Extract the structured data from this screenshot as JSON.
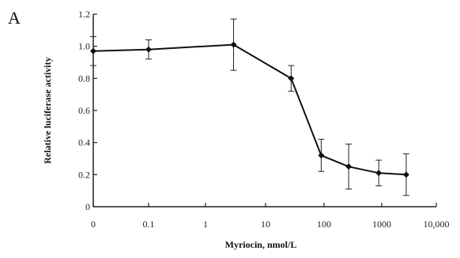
{
  "panel_label": "A",
  "chart_data": {
    "type": "line",
    "title": "",
    "xlabel": "Myriocin, nmol/L",
    "ylabel": "Relative luciferase activity",
    "x_scale": "log",
    "x_tick_labels": [
      "0",
      "0.1",
      "1",
      "10",
      "100",
      "1000",
      "10,000"
    ],
    "y_tick_labels": [
      "0",
      "0.2",
      "0.4",
      "0.6",
      "0.8",
      "1.0",
      "1.2"
    ],
    "ylim": [
      0,
      1.2
    ],
    "grid": false,
    "series": [
      {
        "x": [
          0,
          0.1,
          3,
          30,
          100,
          300,
          1000,
          3000
        ],
        "y": [
          0.97,
          0.98,
          1.01,
          0.8,
          0.32,
          0.25,
          0.21,
          0.2
        ],
        "error": [
          0.09,
          0.06,
          0.16,
          0.08,
          0.1,
          0.14,
          0.08,
          0.13
        ]
      }
    ]
  }
}
